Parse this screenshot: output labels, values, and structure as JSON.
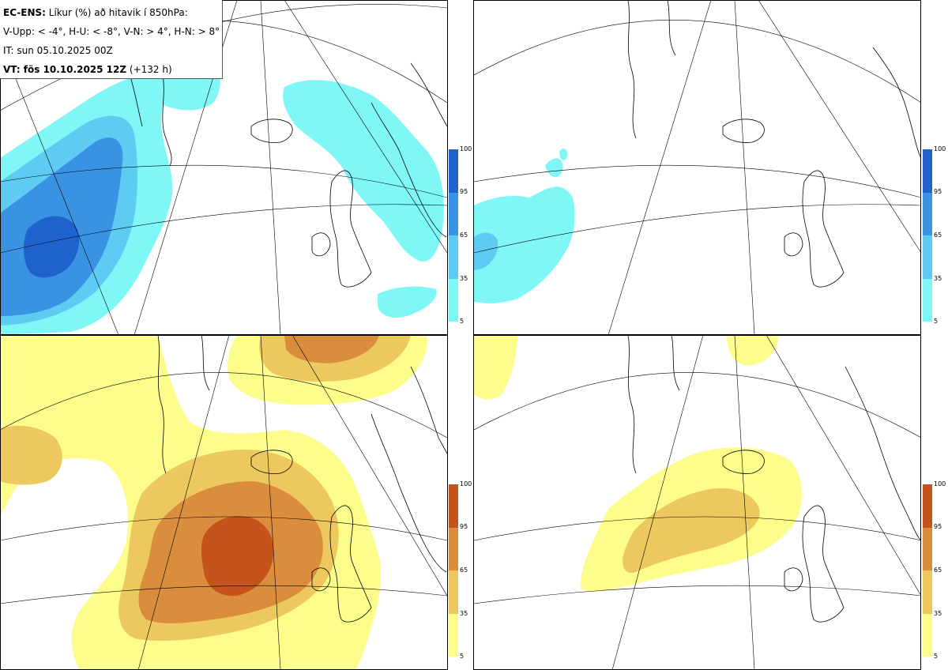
{
  "info": {
    "title_bold": "EC-ENS:",
    "title_rest": " Líkur (%) að hitavik í 850hPa:",
    "thresholds": "V-Upp: < -4°, H-U: < -8°, V-N: > 4°, H-N: > 8°",
    "init_time": "IT: sun 05.10.2025 00Z",
    "valid_bold": "VT: fös 10.10.2025 12Z",
    "valid_rest": " (+132 h)"
  },
  "panels": [
    {
      "id": "V-Upp",
      "colors": [
        "#7ff7f7",
        "#5ecbf2",
        "#3a93e2",
        "#1f62cd"
      ],
      "ticks": [
        "100",
        "95",
        "65",
        "35",
        "5"
      ]
    },
    {
      "id": "H-U",
      "colors": [
        "#7ff7f7",
        "#5ecbf2",
        "#3a93e2",
        "#1f62cd"
      ],
      "ticks": [
        "100",
        "95",
        "65",
        "35",
        "5"
      ]
    },
    {
      "id": "V-N",
      "colors": [
        "#fdfd8c",
        "#ecc85e",
        "#da8e3d",
        "#c5531c"
      ],
      "ticks": [
        "100",
        "95",
        "65",
        "35",
        "5"
      ]
    },
    {
      "id": "H-N",
      "colors": [
        "#fdfd8c",
        "#ecc85e",
        "#da8e3d",
        "#c5531c"
      ],
      "ticks": [
        "100",
        "95",
        "65",
        "35",
        "5"
      ]
    }
  ]
}
